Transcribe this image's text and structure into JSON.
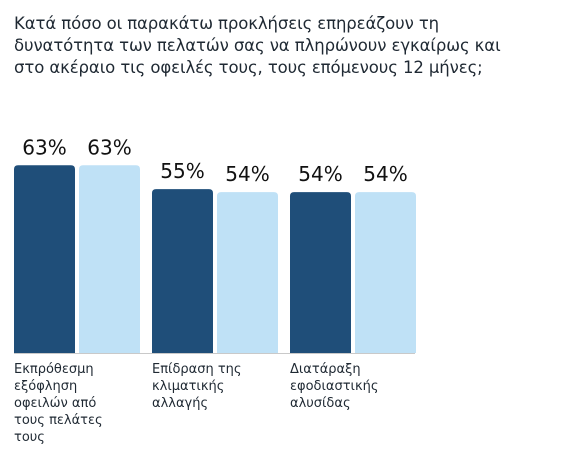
{
  "chart_data": {
    "type": "bar",
    "title": "Κατά πόσο οι παρακάτω προκλήσεις επηρεάζουν τη\nδυνατότητα των πελατών σας να πληρώνουν εγκαίρως και\nστο ακέραιο τις οφειλές τους, τους επόμενους 12 μήνες;",
    "categories": [
      "Εκπρόθεσμη\nεξόφληση\nοφειλών από\nτους πελάτες\nτους",
      "Επίδραση της\nκλιματικής\nαλλαγής",
      "Διατάραξη\nεφοδιαστικής\nαλυσίδας"
    ],
    "series": [
      {
        "values": [
          63,
          55,
          54
        ],
        "color": "#1f4e79"
      },
      {
        "values": [
          63,
          54,
          54
        ],
        "color": "#bfe1f6"
      }
    ],
    "value_labels": [
      [
        "63%",
        "55%",
        "54%"
      ],
      [
        "63%",
        "54%",
        "54%"
      ]
    ],
    "ylim": [
      0,
      100
    ],
    "grid": false,
    "legend": "none",
    "colors": {
      "baseline": "#c9c9c9"
    }
  }
}
